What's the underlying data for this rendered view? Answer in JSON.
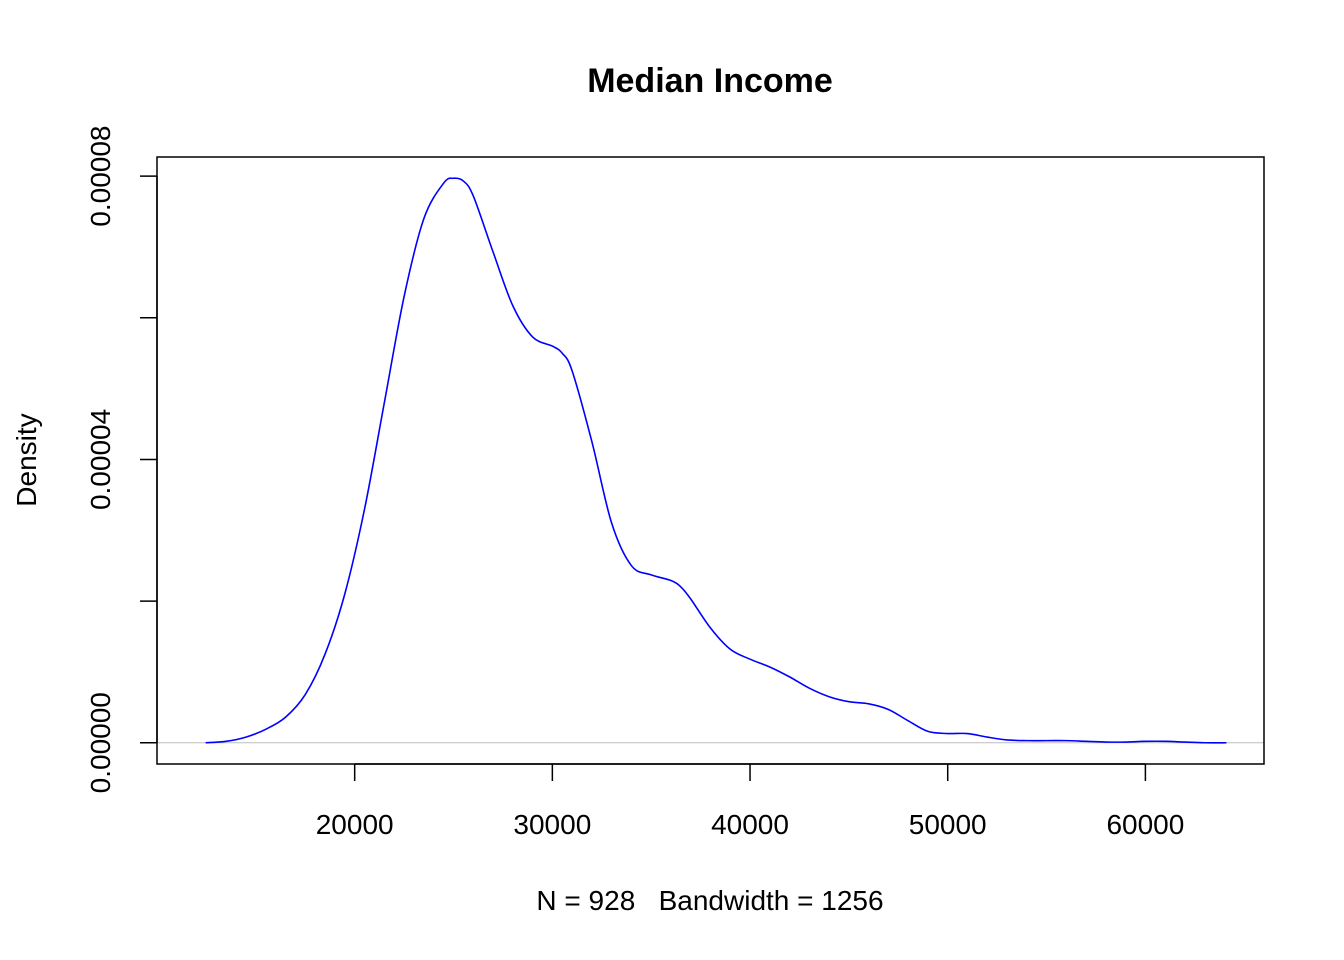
{
  "chart_data": {
    "type": "line",
    "title": "Median Income",
    "xlabel": "N = 928   Bandwidth = 1256",
    "ylabel": "Density",
    "xlim": [
      10000,
      66000
    ],
    "ylim": [
      -3e-06,
      8.27e-05
    ],
    "x_ticks": [
      20000,
      30000,
      40000,
      50000,
      60000
    ],
    "x_tick_labels": [
      "20000",
      "30000",
      "40000",
      "50000",
      "60000"
    ],
    "y_ticks": [
      0,
      2e-05,
      4e-05,
      6e-05,
      8e-05
    ],
    "y_tick_labels": [
      "0.00000",
      "",
      "0.00004",
      "",
      "0.00008"
    ],
    "grid": false,
    "baseline": 0,
    "colors": {
      "line": "#0000ff",
      "baseline": "#bebebe",
      "axes": "#000000"
    },
    "series": [
      {
        "x": [
          12460,
          13500,
          14500,
          15500,
          16500,
          17500,
          18500,
          19500,
          20500,
          21500,
          22500,
          23500,
          24500,
          25000,
          25500,
          26000,
          27000,
          28000,
          29000,
          30000,
          30500,
          31000,
          32000,
          33000,
          34000,
          35000,
          36000,
          36500,
          37000,
          38000,
          39000,
          40000,
          41000,
          42000,
          43000,
          44000,
          45000,
          46000,
          47000,
          48000,
          49000,
          50000,
          51000,
          52000,
          53000,
          54000,
          55000,
          56000,
          57000,
          58000,
          59000,
          60000,
          61000,
          62000,
          63000,
          64100
        ],
        "y": [
          0.0,
          2e-07,
          8e-07,
          1.9e-06,
          3.6e-06,
          6.8e-06,
          1.25e-05,
          2.1e-05,
          3.3e-05,
          4.8e-05,
          6.3e-05,
          7.4e-05,
          7.9e-05,
          7.97e-05,
          7.93e-05,
          7.72e-05,
          6.93e-05,
          6.17e-05,
          5.73e-05,
          5.6e-05,
          5.5e-05,
          5.25e-05,
          4.25e-05,
          3.1e-05,
          2.5e-05,
          2.37e-05,
          2.29e-05,
          2.2e-05,
          2.03e-05,
          1.62e-05,
          1.32e-05,
          1.18e-05,
          1.07e-05,
          9.3e-06,
          7.7e-06,
          6.5e-06,
          5.8e-06,
          5.5e-06,
          4.7e-06,
          3.1e-06,
          1.6e-06,
          1.3e-06,
          1.3e-06,
          8e-07,
          4e-07,
          3e-07,
          3e-07,
          3e-07,
          2e-07,
          1e-07,
          1e-07,
          2e-07,
          2e-07,
          1e-07,
          0.0,
          0.0
        ]
      }
    ]
  }
}
